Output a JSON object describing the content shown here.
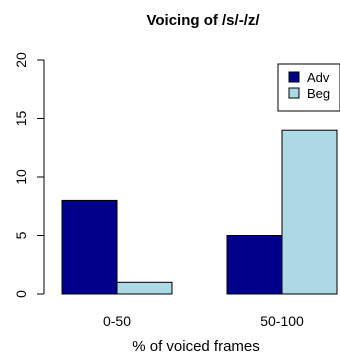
{
  "chart_data": {
    "type": "bar",
    "title": "Voicing of /s/-/z/",
    "xlabel": "% of voiced frames",
    "ylabel": "",
    "categories": [
      "0-50",
      "50-100"
    ],
    "series": [
      {
        "name": "Adv",
        "color": "#00008b",
        "values": [
          8,
          5
        ]
      },
      {
        "name": "Beg",
        "color": "#add8e6",
        "values": [
          1,
          14
        ]
      }
    ],
    "ylim": [
      0,
      20
    ],
    "yticks": [
      0,
      5,
      10,
      15,
      20
    ],
    "grid": false,
    "legend_position": "top-right"
  }
}
